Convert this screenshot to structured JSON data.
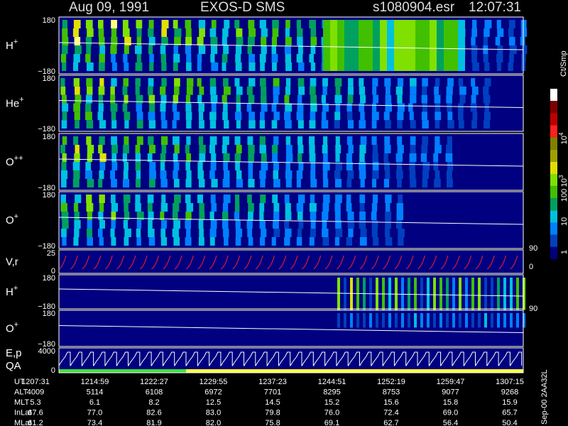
{
  "header": {
    "date": "Aug 09, 1991",
    "instrument": "EXOS-D SMS",
    "file": "s1080904.esr",
    "time": "12:07:31"
  },
  "panels": [
    {
      "label": "H",
      "charge": "+",
      "ticks": [
        "180",
        "−180"
      ]
    },
    {
      "label": "He",
      "charge": "+",
      "ticks": [
        "180",
        "−180"
      ]
    },
    {
      "label": "O",
      "charge": "++",
      "ticks": [
        "180",
        "−180"
      ]
    },
    {
      "label": "O",
      "charge": "+",
      "ticks": [
        "180",
        "−180"
      ]
    },
    {
      "label": "V,r",
      "ticks": [
        "25",
        "0"
      ],
      "right_ticks": [
        "90",
        "0"
      ]
    },
    {
      "label": "H",
      "charge": "+",
      "ticks": [
        "180",
        "−180"
      ]
    },
    {
      "label": "O",
      "charge": "+",
      "ticks": [
        "180",
        "−180"
      ],
      "right_ticks": [
        "90"
      ]
    },
    {
      "label": "E,p",
      "label2": "QA",
      "ticks": [
        "4000",
        "0"
      ]
    }
  ],
  "colorbar": {
    "unit": "Ct/Smp",
    "labels": [
      {
        "text": "10",
        "exp": "4"
      },
      {
        "text": "10",
        "exp": "3"
      },
      {
        "text": "100"
      },
      {
        "text": "10"
      },
      {
        "text": "1"
      }
    ]
  },
  "ephemeris": {
    "rows": [
      {
        "name": "UT",
        "values": [
          "1207:31",
          "1214:59",
          "1222:27",
          "1229:55",
          "1237:23",
          "1244:51",
          "1252:19",
          "1259:47",
          "1307:15"
        ]
      },
      {
        "name": "ALT",
        "values": [
          "4009",
          "5114",
          "6108",
          "6972",
          "7701",
          "8295",
          "8753",
          "9077",
          "9268"
        ]
      },
      {
        "name": "MLT",
        "values": [
          "5.3",
          "6.1",
          "8.2",
          "12.5",
          "14.5",
          "15.2",
          "15.6",
          "15.8",
          "15.9"
        ]
      },
      {
        "name": "InLat",
        "values": [
          "67.6",
          "77.0",
          "82.6",
          "83.0",
          "79.8",
          "76.0",
          "72.4",
          "69.0",
          "65.7"
        ]
      },
      {
        "name": "MLat",
        "values": [
          "61.2",
          "73.4",
          "81.9",
          "82.0",
          "75.8",
          "69.1",
          "62.7",
          "56.4",
          "50.4"
        ]
      }
    ]
  },
  "footer_note": "Sep-00 2AA32L"
}
